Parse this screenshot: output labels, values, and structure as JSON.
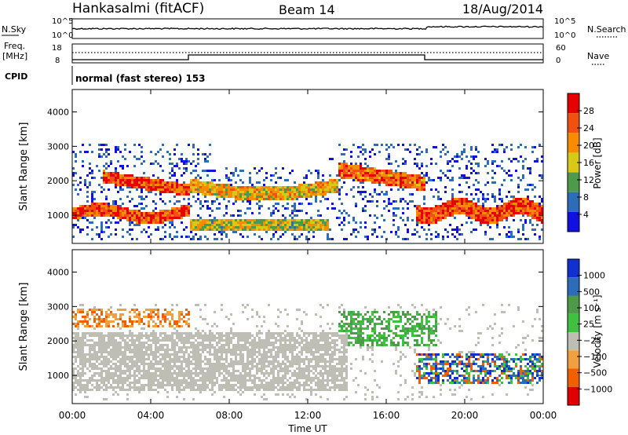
{
  "header": {
    "station": "Hankasalmi (fitACF)",
    "beam": "Beam 14",
    "date": "18/Aug/2014"
  },
  "nsky_panel": {
    "left_label": "N.Sky",
    "left_ticks": [
      "10^5",
      "10^0"
    ],
    "right_label": "N.Search",
    "right_ticks": [
      "10^5",
      "10^0"
    ]
  },
  "freq_panel": {
    "left_label_1": "Freq.",
    "left_label_2": "[MHz]",
    "left_ticks": [
      "18",
      "8"
    ],
    "right_label": "Nave",
    "right_ticks": [
      "60",
      "0"
    ]
  },
  "cpid": {
    "label": "CPID",
    "value": "normal (fast stereo) 153"
  },
  "x_axis": {
    "label": "Time UT",
    "ticks": [
      "00:00",
      "04:00",
      "08:00",
      "12:00",
      "16:00",
      "20:00",
      "00:00"
    ]
  },
  "chart_data": [
    {
      "type": "heatmap",
      "panel": "power",
      "ylabel": "Slant Range [km]",
      "yticks": [
        1000,
        2000,
        3000,
        4000
      ],
      "ylim": [
        180,
        4650
      ],
      "xlim_hours": [
        0,
        24
      ],
      "colorbar": {
        "label": "Power [dB]",
        "ticks": [
          "28",
          "24",
          "20",
          "16",
          "12",
          "8",
          "4"
        ],
        "colors": [
          "#e80000",
          "#f05010",
          "#f88c00",
          "#d8c818",
          "#4c9a4a",
          "#2c6cb8",
          "#1010e0"
        ]
      },
      "features": [
        {
          "t": [
            0.0,
            6.0
          ],
          "range": [
            850,
            1300
          ],
          "level": "strong"
        },
        {
          "t": [
            1.5,
            6.0
          ],
          "range": [
            1500,
            2300
          ],
          "level": "strong"
        },
        {
          "t": [
            6.0,
            13.5
          ],
          "range": [
            1500,
            2400
          ],
          "level": "moderate"
        },
        {
          "t": [
            13.5,
            18.0
          ],
          "range": [
            1900,
            2700
          ],
          "level": "strong"
        },
        {
          "t": [
            17.5,
            24.0
          ],
          "range": [
            700,
            1500
          ],
          "level": "strong"
        },
        {
          "t": [
            0.0,
            24.0
          ],
          "range": [
            2400,
            3100
          ],
          "level": "weak"
        }
      ]
    },
    {
      "type": "heatmap",
      "panel": "velocity",
      "ylabel": "Slant Range [km]",
      "yticks": [
        1000,
        2000,
        3000,
        4000
      ],
      "ylim": [
        180,
        4650
      ],
      "xlim_hours": [
        0,
        24
      ],
      "colorbar": {
        "label": "Velocity [m s⁻¹]",
        "ticks": [
          "1000",
          "500",
          "100",
          "25",
          "−25",
          "−100",
          "−500",
          "−1000"
        ],
        "colors": [
          "#1030d0",
          "#2c6cb8",
          "#4c9a4a",
          "#40c040",
          "#bebeb4",
          "#f0a040",
          "#f06000",
          "#e00000"
        ]
      },
      "features": [
        {
          "t": [
            0.0,
            14.0
          ],
          "range": [
            600,
            2300
          ],
          "level": "ground scatter"
        },
        {
          "t": [
            0.0,
            6.0
          ],
          "range": [
            2400,
            3000
          ],
          "level": "negative velocity"
        },
        {
          "t": [
            13.5,
            18.5
          ],
          "range": [
            1900,
            2900
          ],
          "level": "positive velocity"
        },
        {
          "t": [
            17.5,
            24.0
          ],
          "range": [
            800,
            1700
          ],
          "level": "positive/negative mixed"
        }
      ]
    }
  ]
}
